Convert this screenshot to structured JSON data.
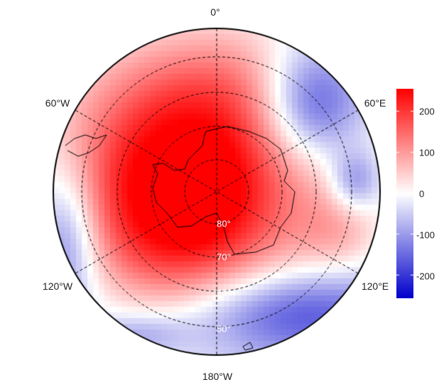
{
  "map": {
    "projection": "south polar stereographic",
    "longitude_labels": [
      "0°",
      "60°E",
      "120°E",
      "180°W",
      "120°W",
      "60°W"
    ],
    "latitude_labels": [
      "80°",
      "70°",
      "60°",
      "50°"
    ]
  },
  "colorbar": {
    "range": [
      -255,
      255
    ],
    "ticks": [
      "200",
      "100",
      "0",
      "-100",
      "-200"
    ],
    "tick_values": [
      200,
      100,
      0,
      -100,
      -200
    ],
    "colors": {
      "high": "#ff0000",
      "mid": "#ffffff",
      "low": "#0000cc"
    }
  }
}
